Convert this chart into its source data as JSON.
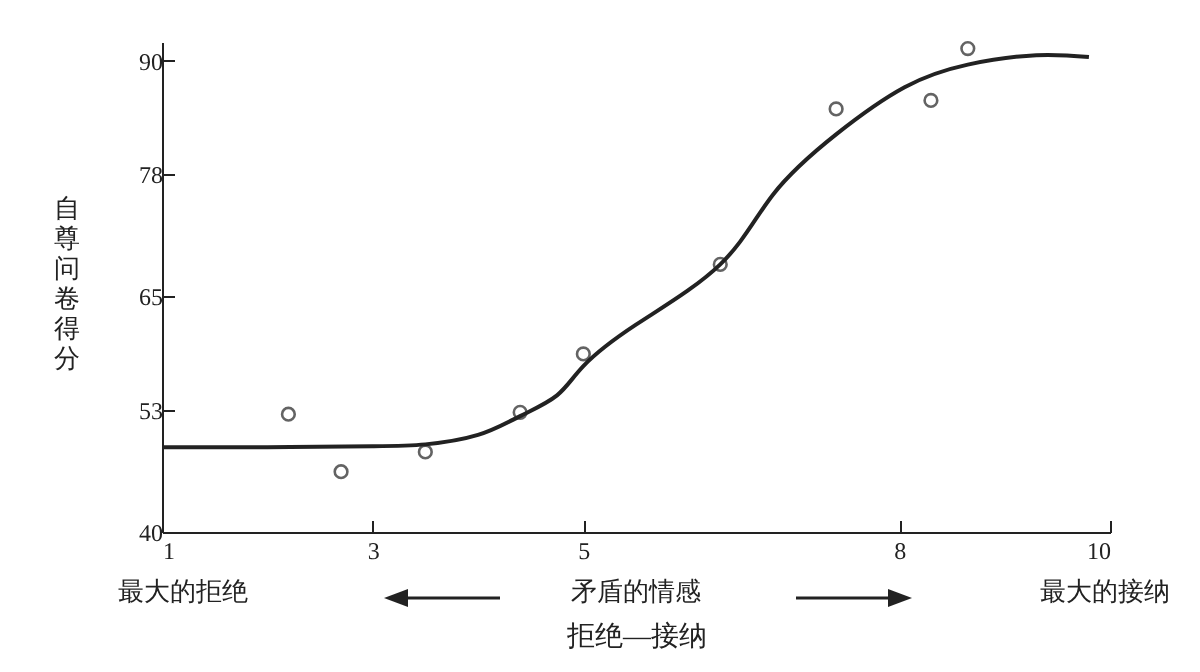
{
  "chart_data": {
    "type": "line",
    "xlabel": "拒绝—接纳",
    "ylabel": "自尊问卷得分",
    "xlim": [
      1,
      10
    ],
    "xticks": [
      1,
      3,
      5,
      8,
      10
    ],
    "ylim": [
      40,
      92
    ],
    "yticks": [
      40,
      53,
      65,
      78,
      90
    ],
    "grid": false,
    "series": [
      {
        "color": "#222222",
        "x": [
          1,
          2,
          3,
          3.5,
          4,
          4.4,
          4.75,
          5,
          5.5,
          6.3,
          6.8,
          7.4,
          8.05,
          8.65,
          9.3,
          9.8
        ],
        "values": [
          49,
          49,
          49.1,
          49.3,
          50.3,
          52.3,
          54.5,
          57.6,
          62,
          68.4,
          75.8,
          82.2,
          87.2,
          89.6,
          90.6,
          90.4
        ],
        "marker": "none",
        "line_style": "solid"
      },
      {
        "type": "scatter",
        "color": "#222222",
        "x": [
          2.2,
          2.7,
          3.5,
          4.4,
          5.0,
          6.3,
          7.4,
          8.3,
          8.65
        ],
        "values": [
          52.5,
          46.4,
          48.5,
          52.7,
          58.9,
          68.4,
          84.9,
          85.8,
          91.3
        ],
        "marker": "circle"
      }
    ],
    "annotations": [
      "最大的拒绝",
      "矛盾的情感",
      "最大的接纳"
    ]
  }
}
